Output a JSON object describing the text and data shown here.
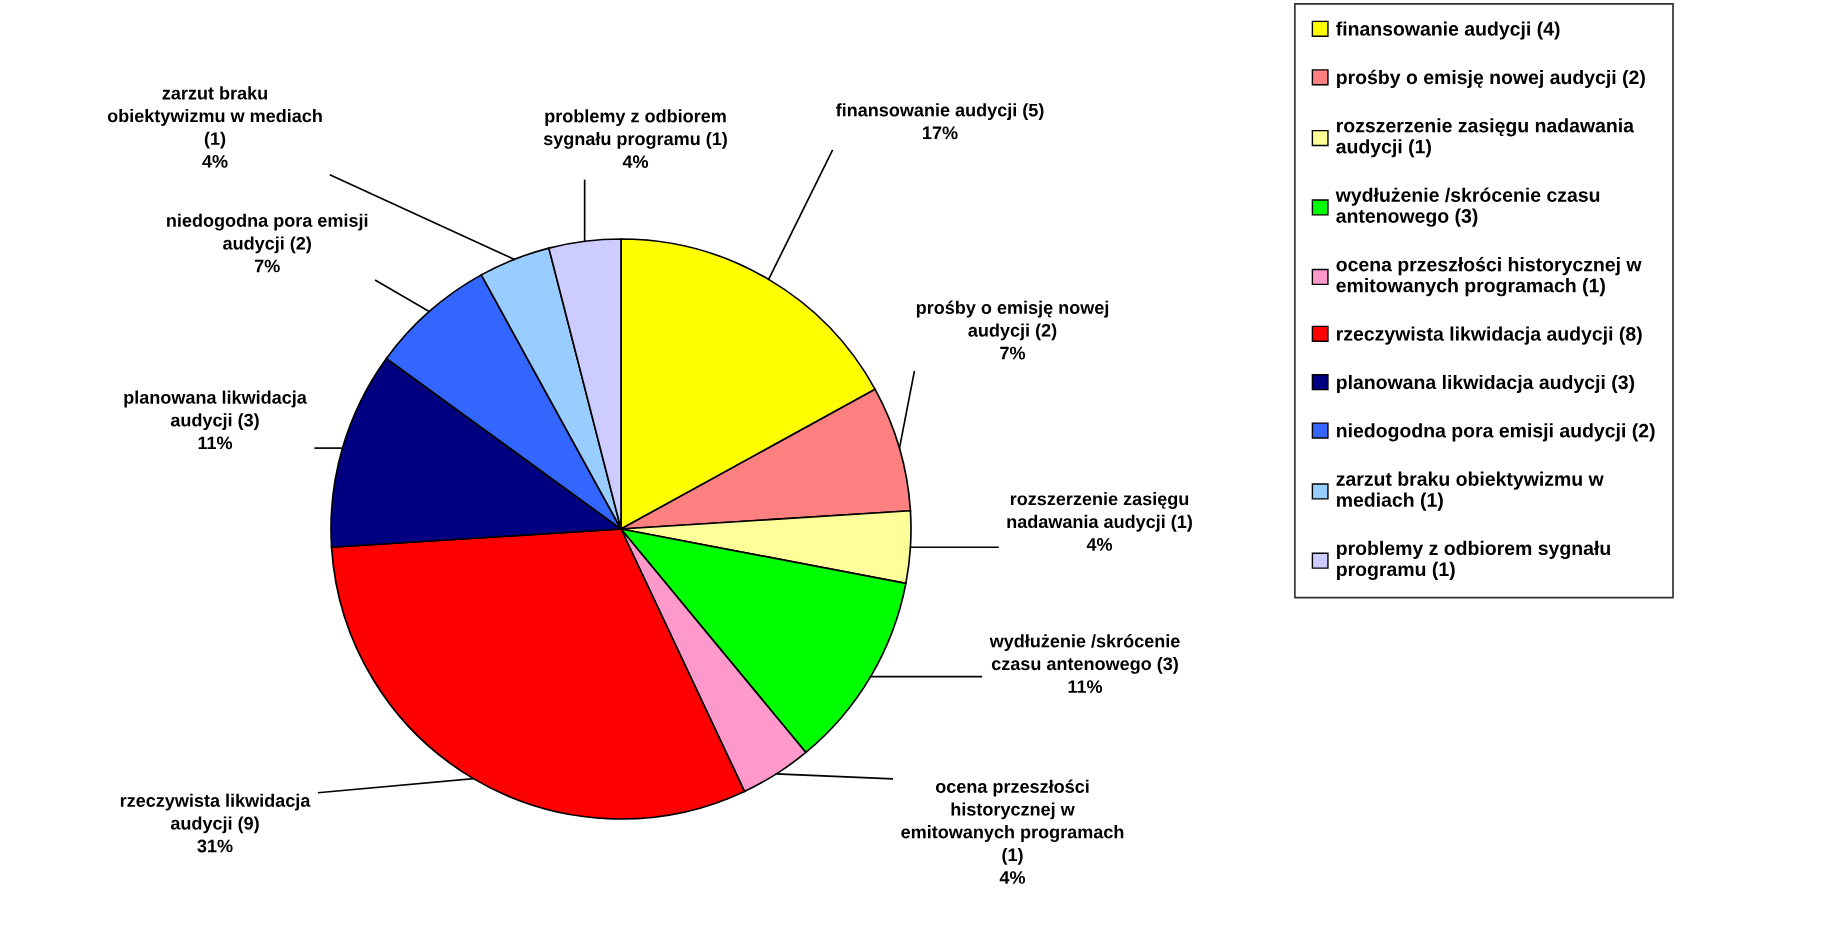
{
  "chart_data": {
    "type": "pie",
    "categories": [
      "finansowanie audycji (4)",
      "prośby o emisję nowej audycji (2)",
      "rozszerzenie zasięgu nadawania\naudycji (1)",
      "wydłużenie /skrócenie czasu\nantenowego (3)",
      "ocena przeszłości historycznej w\nemitowanych programach (1)",
      "rzeczywista likwidacja audycji (8)",
      "planowana likwidacja audycji (3)",
      "niedogodna pora emisji audycji (2)",
      "zarzut braku obiektywizmu w\nmediach (1)",
      "problemy z odbiorem sygnału\nprogramu (1)"
    ],
    "values": [
      17,
      7,
      4,
      11,
      4,
      31,
      11,
      7,
      4,
      4
    ],
    "colors": [
      "#ffff00",
      "#ff8080",
      "#ffff99",
      "#00ff00",
      "#ff99cc",
      "#ff0000",
      "#000080",
      "#3366ff",
      "#99ccff",
      "#ccccff"
    ],
    "value_labels": [
      "finansowanie audycji (5)\n17%",
      "prośby o emisję nowej\naudycji (2)\n7%",
      "rozszerzenie zasięgu\nnadawania audycji (1)\n4%",
      "wydłużenie /skrócenie\nczasu antenowego (3)\n11%",
      "ocena przeszłości\nhistorycznej w\nemitowanych programach\n(1)\n4%",
      "rzeczywista likwidacja\naudycji (9)\n31%",
      "planowana likwidacja\naudycji (3)\n11%",
      "niedogodna pora emisji\naudycji (2)\n7%",
      "zarzut braku\nobiektywizmu w mediach\n(1)\n4%",
      "problemy z odbiorem\nsygnału programu (1)\n4%"
    ],
    "legend": "right"
  }
}
